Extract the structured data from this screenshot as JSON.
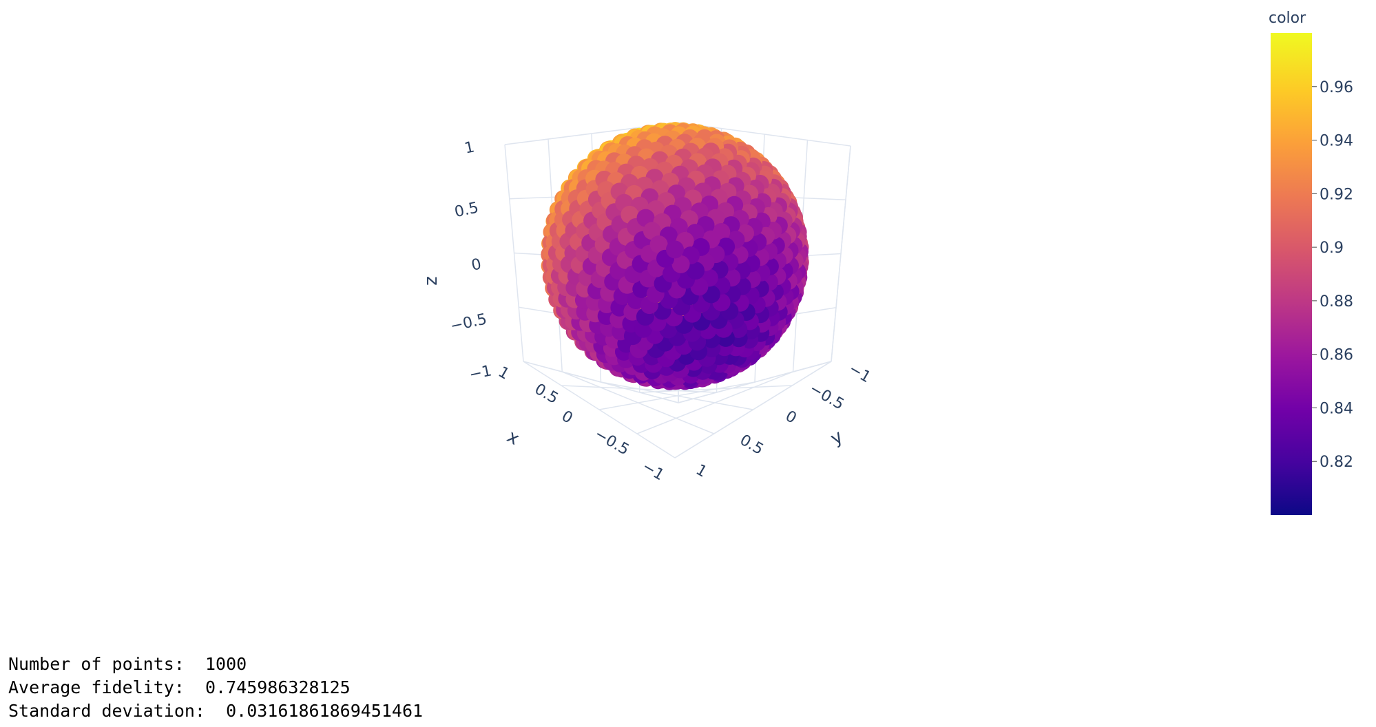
{
  "chart_data": {
    "type": "scatter3d",
    "n_points": 1000,
    "axes": {
      "x": {
        "label": "x",
        "range": [
          -1,
          1
        ],
        "ticks": [
          "1",
          "0.5",
          "0",
          "−0.5",
          "−1"
        ]
      },
      "y": {
        "label": "y",
        "range": [
          -1,
          1
        ],
        "ticks": [
          "−1",
          "−0.5",
          "0",
          "0.5",
          "1"
        ]
      },
      "z": {
        "label": "z",
        "range": [
          -1,
          1
        ],
        "ticks": [
          "1",
          "0.5",
          "0",
          "−0.5",
          "−1"
        ]
      }
    },
    "colorbar": {
      "title": "color",
      "range": [
        0.8,
        0.98
      ],
      "ticks": [
        "0.96",
        "0.94",
        "0.92",
        "0.9",
        "0.88",
        "0.86",
        "0.84",
        "0.82"
      ],
      "colorscale": [
        "#0d0887",
        "#46039f",
        "#7201a8",
        "#9c179e",
        "#bd3786",
        "#d8576b",
        "#ed7953",
        "#fb9f3a",
        "#fdca26",
        "#f0f921"
      ]
    },
    "grid": true,
    "marker_color_low_region": "bottom-front",
    "marker_color_high_region": "top-left"
  },
  "stats": [
    {
      "label": "Number of points:",
      "value": "1000"
    },
    {
      "label": "Average fidelity:",
      "value": "0.745986328125"
    },
    {
      "label": "Standard deviation:",
      "value": "0.03161861869451461"
    }
  ]
}
